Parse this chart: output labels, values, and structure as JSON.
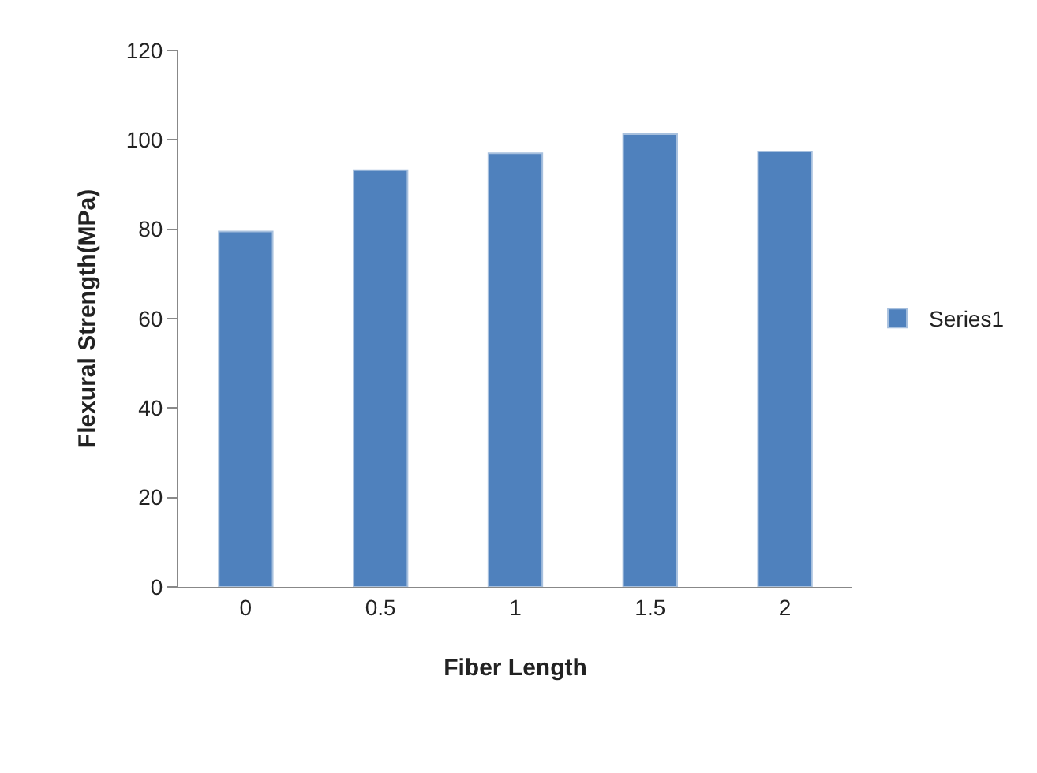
{
  "chart_data": {
    "type": "bar",
    "xlabel": "Fiber Length",
    "ylabel": "Flexural Strength(MPa)",
    "categories": [
      "0",
      "0.5",
      "1",
      "1.5",
      "2"
    ],
    "series": [
      {
        "name": "Series1",
        "color": "#4f81bd",
        "values": [
          79.5,
          93.2,
          97.0,
          101.3,
          97.4
        ]
      }
    ],
    "ylim": [
      0,
      120
    ],
    "yticks": [
      0,
      20,
      40,
      60,
      80,
      100,
      120
    ],
    "grid": false,
    "legend": "right"
  }
}
